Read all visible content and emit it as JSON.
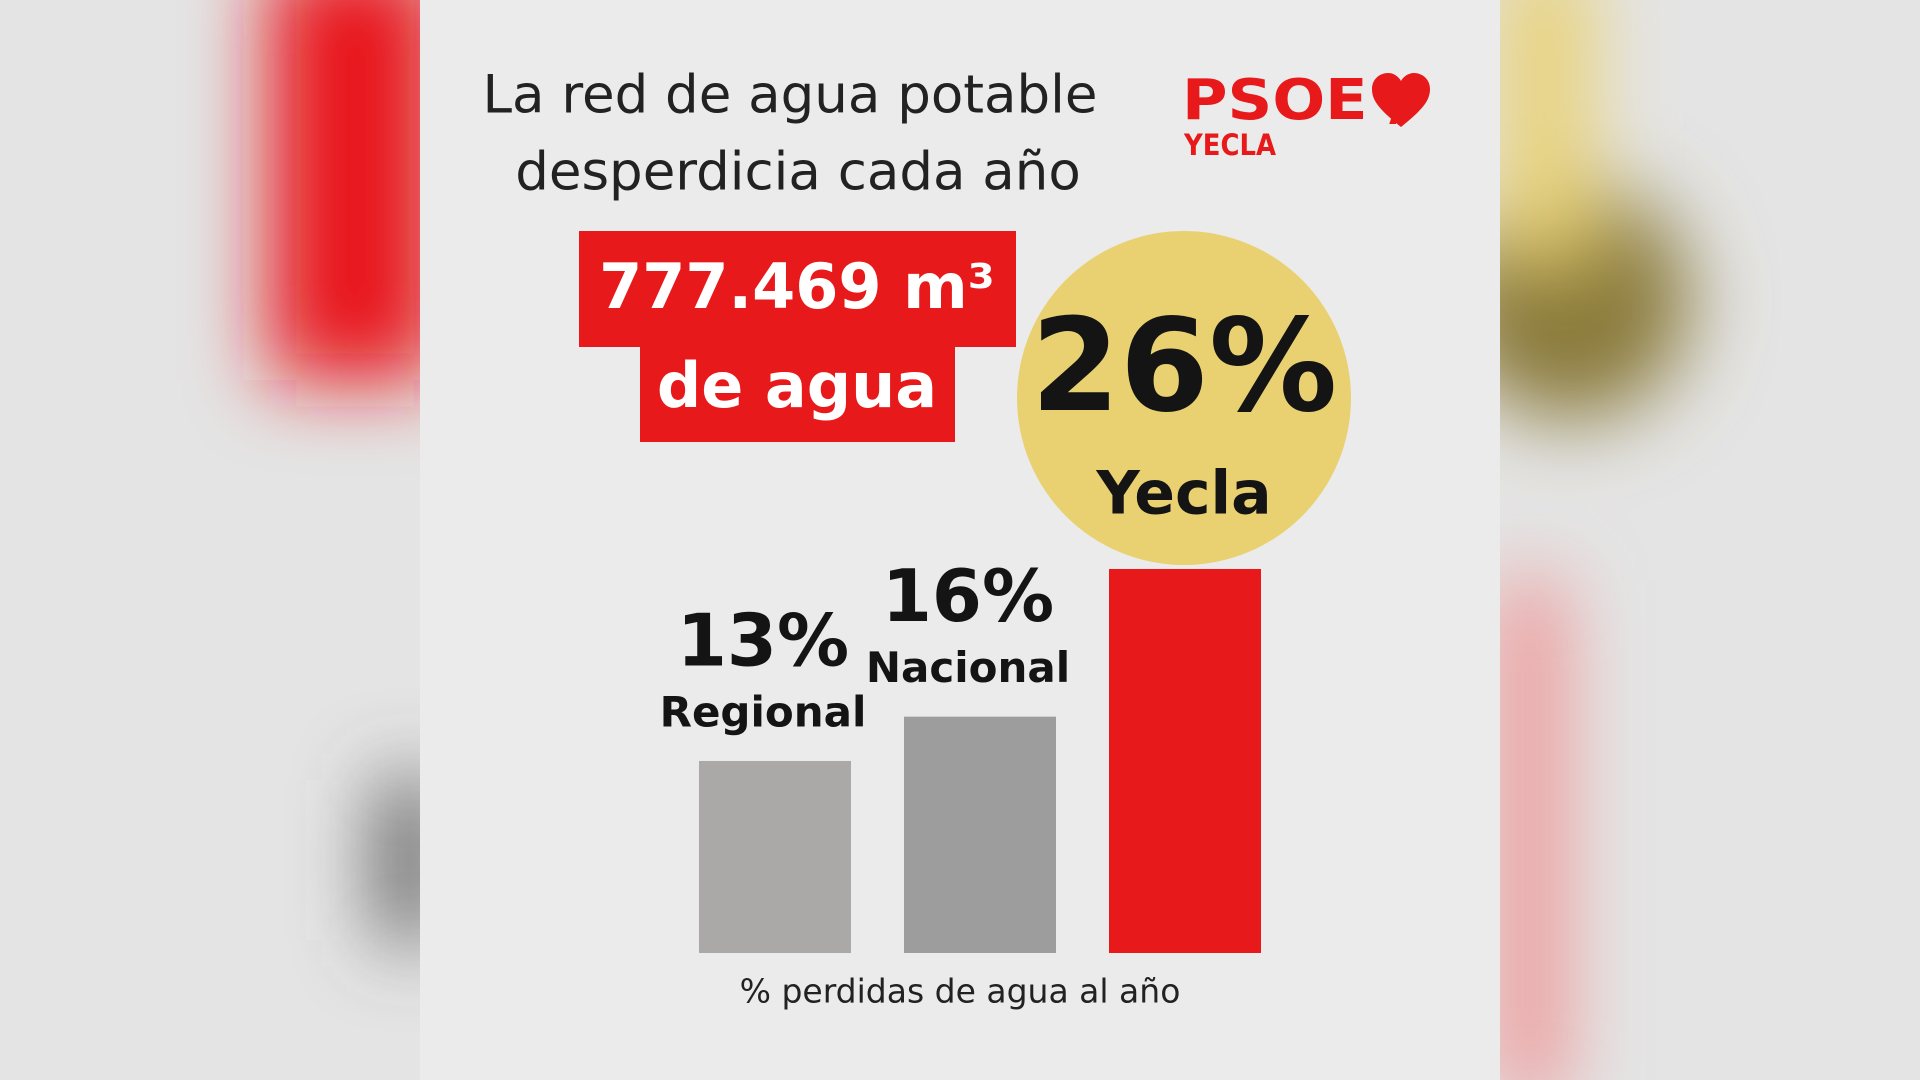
{
  "chart_data": {
    "type": "bar",
    "title_lines": [
      "La red de agua potable",
      "desperdicia cada año"
    ],
    "highlight_lines": [
      "777.469 m³",
      "de agua"
    ],
    "categories": [
      "Regional",
      "Nacional",
      "Yecla"
    ],
    "values": [
      13,
      16,
      26
    ],
    "value_labels": [
      "13%",
      "16%",
      "26%"
    ],
    "colors": [
      "#aaa9a7",
      "#9d9d9d",
      "#e8191a"
    ],
    "x_label": "% perdidas de agua al año"
  },
  "logo": {
    "name": "PSOE /",
    "place": "YECLA"
  }
}
